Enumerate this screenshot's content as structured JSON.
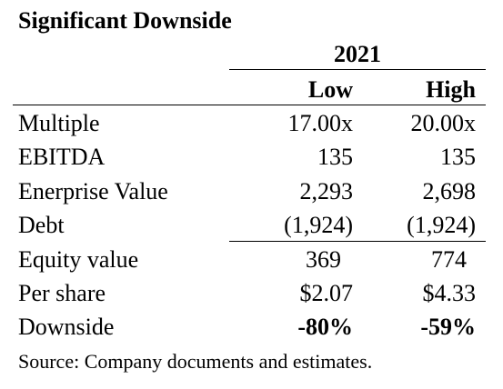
{
  "title": "Significant Downside",
  "table": {
    "year": "2021",
    "columns": [
      "Low",
      "High"
    ],
    "rows": [
      {
        "label": "Multiple",
        "low": "17.00x",
        "high": "20.00x"
      },
      {
        "label": "EBITDA",
        "low": "135",
        "high": "135"
      },
      {
        "label": "Enerprise Value",
        "low": "2,293",
        "high": "2,698"
      },
      {
        "label": "Debt",
        "low": "(1,924)",
        "high": "(1,924)"
      },
      {
        "label": "Equity value",
        "low": "369",
        "high": "774"
      },
      {
        "label": "Per share",
        "low": "$2.07",
        "high": "$4.33"
      },
      {
        "label": "Downside",
        "low": "-80%",
        "high": "-59%"
      }
    ]
  },
  "source": "Source: Company documents and estimates."
}
